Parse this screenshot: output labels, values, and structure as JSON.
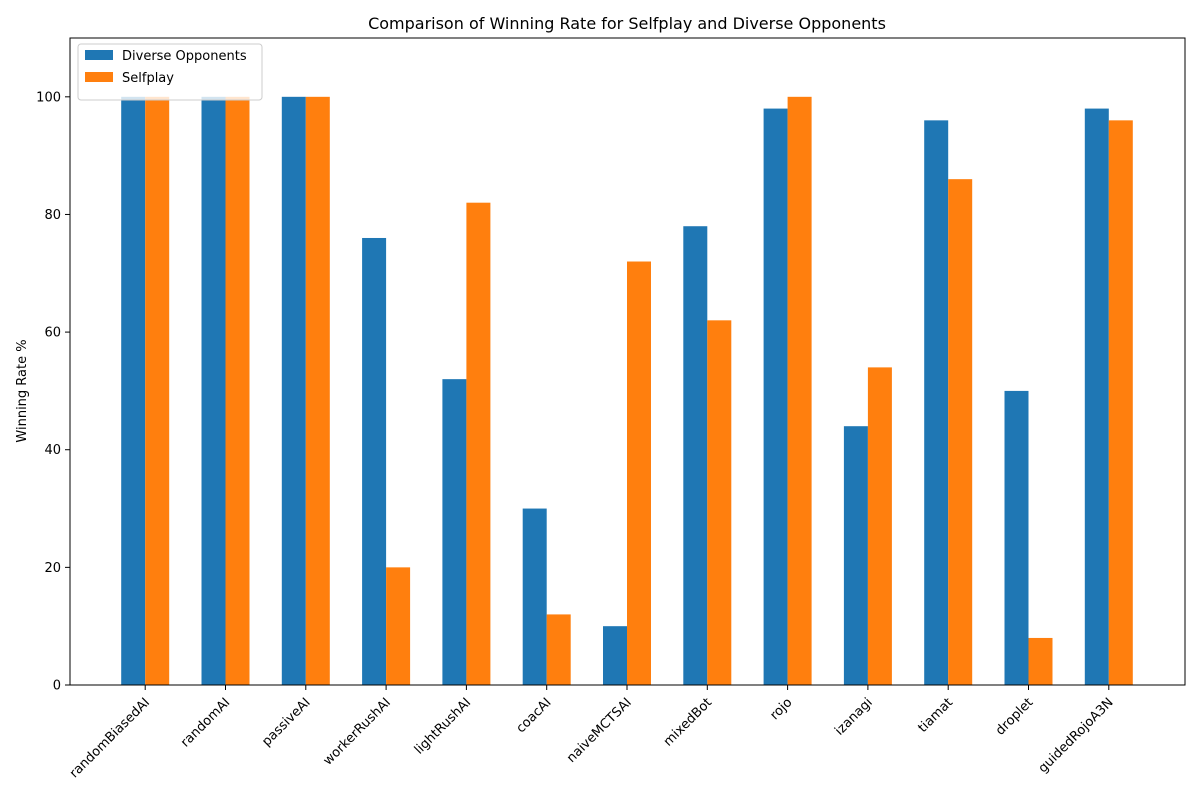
{
  "chart_data": {
    "type": "bar",
    "title": "Comparison of Winning Rate for Selfplay and Diverse Opponents",
    "xlabel": "",
    "ylabel": "Winning Rate %",
    "ylim": [
      0,
      110
    ],
    "yticks": [
      0,
      20,
      40,
      60,
      80,
      100
    ],
    "grid": false,
    "legend_position": "top-left",
    "categories": [
      "randomBiasedAI",
      "randomAI",
      "passiveAI",
      "workerRushAI",
      "lightRushAI",
      "coacAI",
      "naiveMCTSAI",
      "mixedBot",
      "rojo",
      "izanagi",
      "tiamat",
      "droplet",
      "guidedRojoA3N"
    ],
    "series": [
      {
        "name": "Diverse Opponents",
        "color": "#1f77b4",
        "values": [
          100,
          100,
          100,
          76,
          52,
          30,
          10,
          78,
          98,
          44,
          96,
          50,
          98
        ]
      },
      {
        "name": "Selfplay",
        "color": "#ff7f0e",
        "values": [
          100,
          100,
          100,
          20,
          82,
          12,
          72,
          62,
          100,
          54,
          86,
          8,
          96
        ]
      }
    ]
  }
}
